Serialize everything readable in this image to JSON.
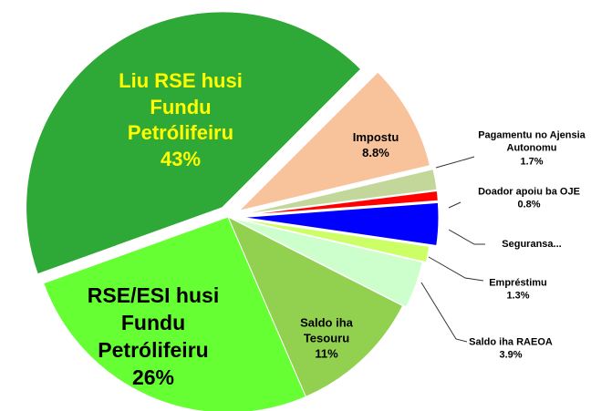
{
  "chart_data": {
    "type": "pie",
    "categories": [
      "Impostu",
      "Pagamentu no Ajensia Autonomu",
      "Doador apoiu ba OJE",
      "Seguransa...",
      "Empréstimu",
      "Saldo iha RAEOA",
      "Saldo iha Tesouru",
      "RSE/ESI husi Fundu Petrólifeiru",
      "Liu RSE husi Fundu Petrólifeiru"
    ],
    "values": [
      8.8,
      1.7,
      0.8,
      3.5,
      1.3,
      3.9,
      11,
      26,
      43
    ],
    "value_labels": [
      "8.8%",
      "1.7%",
      "0.8%",
      null,
      "1.3%",
      "3.9%",
      "11%",
      "26%",
      "43%"
    ],
    "colors": [
      "#f8c29a",
      "#c4d79b",
      "#ff0000",
      "#0000ff",
      "#ccff66",
      "#ccffcc",
      "#92d050",
      "#66ff33",
      "#2ea836"
    ]
  }
}
